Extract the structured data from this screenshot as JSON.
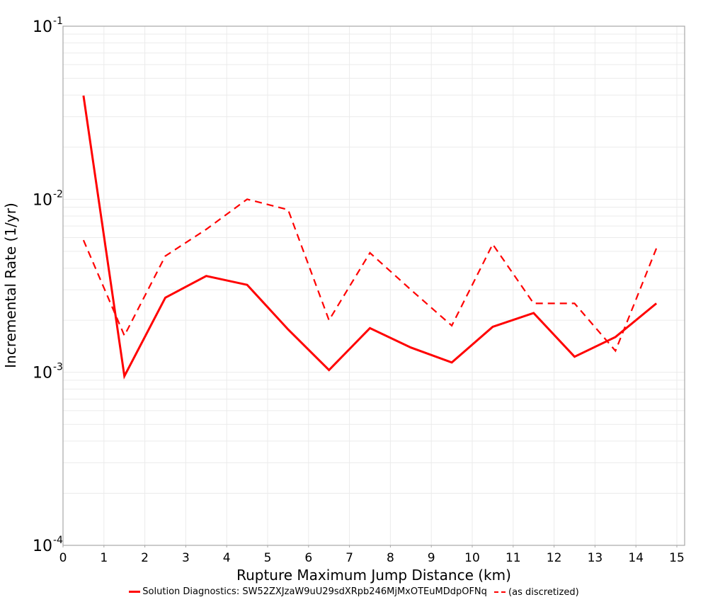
{
  "chart_data": {
    "type": "line",
    "title": "",
    "xlabel": "Rupture Maximum Jump Distance (km)",
    "ylabel": "Incremental Rate (1/yr)",
    "xlim": [
      0,
      15
    ],
    "ylim": [
      0.0001,
      0.1
    ],
    "yscale": "log",
    "grid": true,
    "legend_position": "bottom",
    "x_ticks": [
      "0",
      "1",
      "2",
      "3",
      "4",
      "5",
      "6",
      "7",
      "8",
      "9",
      "10",
      "11",
      "12",
      "13",
      "14",
      "15"
    ],
    "y_ticks": [
      {
        "base": "10",
        "exp": "-1",
        "value": 0.1
      },
      {
        "base": "10",
        "exp": "-2",
        "value": 0.01
      },
      {
        "base": "10",
        "exp": "-3",
        "value": 0.001
      },
      {
        "base": "10",
        "exp": "-4",
        "value": 0.0001
      }
    ],
    "x": [
      0.5,
      1.5,
      2.5,
      3.5,
      4.5,
      5.5,
      6.5,
      7.5,
      8.5,
      9.5,
      10.5,
      11.5,
      12.5,
      13.5,
      14.5
    ],
    "series": [
      {
        "name": "Solution Diagnostics: SW52ZXJzaW9uU29sdXRpb246MjMxOTEuMDdpOFNq",
        "style": "solid",
        "color": "#ff0000",
        "values": [
          0.0397,
          0.00095,
          0.0027,
          0.0036,
          0.0032,
          0.00177,
          0.00103,
          0.0018,
          0.00139,
          0.00114,
          0.00183,
          0.0022,
          0.00123,
          0.0016,
          0.0025
        ]
      },
      {
        "name": "(as discretized)",
        "style": "dashed",
        "color": "#ff0000",
        "values": [
          0.0058,
          0.00163,
          0.0047,
          0.0067,
          0.01,
          0.0087,
          0.002,
          0.0049,
          0.003,
          0.00186,
          0.0055,
          0.0025,
          0.0025,
          0.00133,
          0.0052
        ]
      }
    ]
  },
  "legend": {
    "items": [
      {
        "label": "Solution Diagnostics: SW52ZXJzaW9uU29sdXRpb246MjMxOTEuMDdpOFNq"
      },
      {
        "label": "(as discretized)"
      }
    ]
  }
}
